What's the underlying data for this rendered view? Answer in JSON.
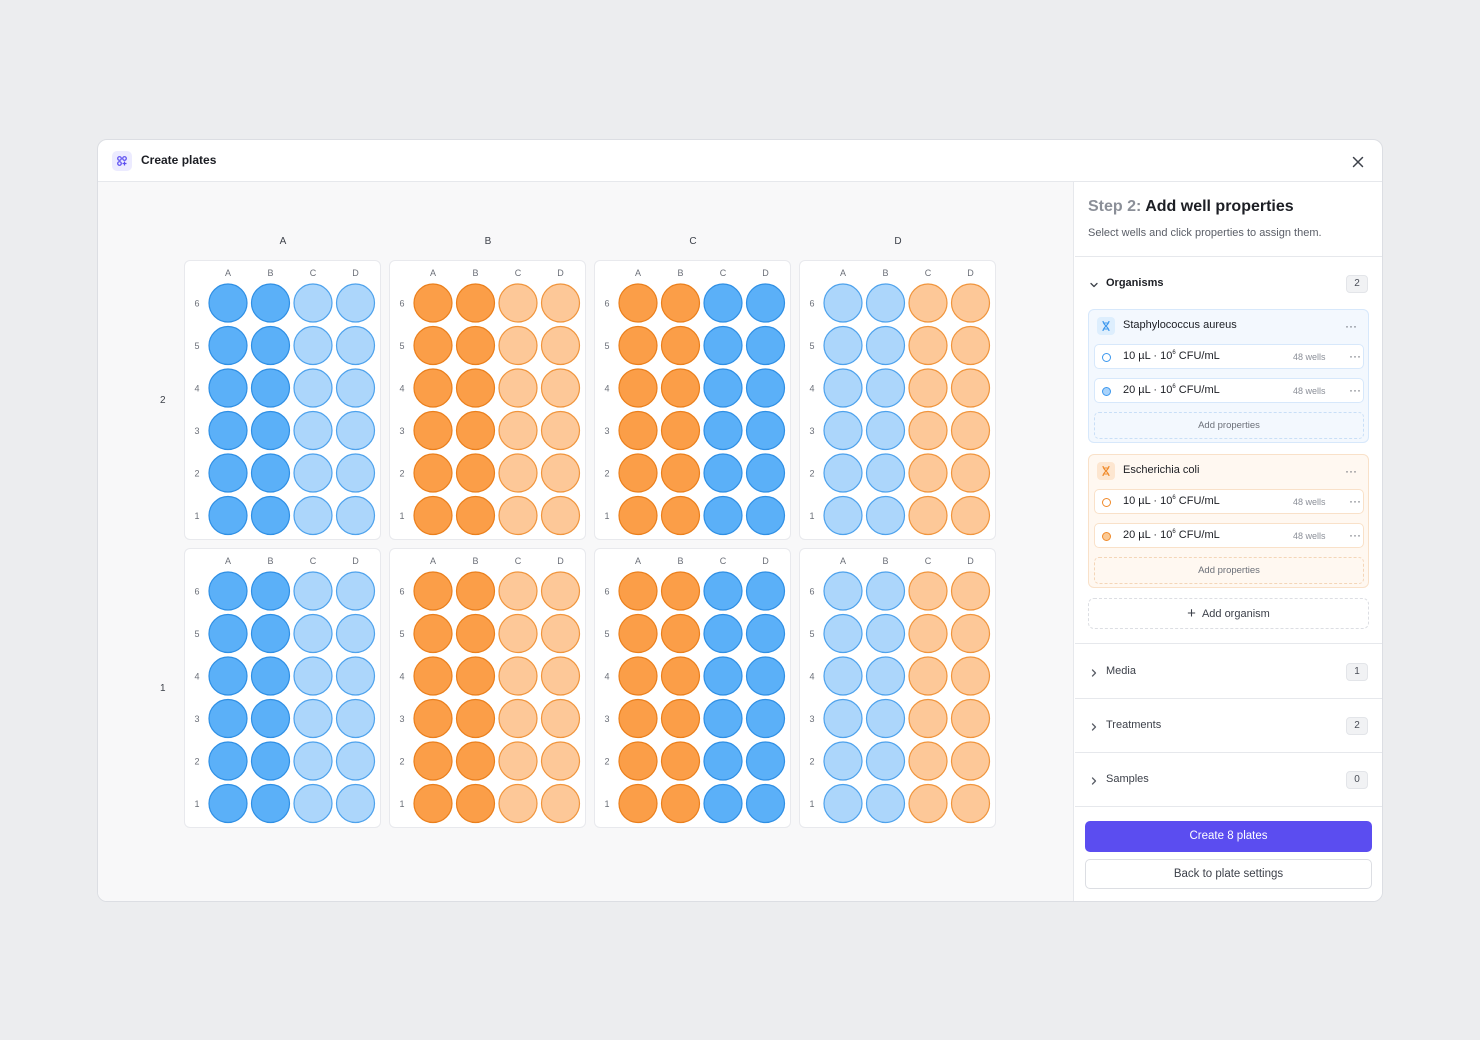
{
  "window": {
    "title": "Create plates",
    "icon": "plates-grid-icon",
    "close_icon": "close-icon"
  },
  "layout_grid": {
    "column_labels": [
      "A",
      "B",
      "C",
      "D"
    ],
    "row_labels": [
      "2",
      "1"
    ]
  },
  "plate_format": {
    "well_columns": [
      "A",
      "B",
      "C",
      "D"
    ],
    "well_rows": [
      "6",
      "5",
      "4",
      "3",
      "2",
      "1"
    ]
  },
  "plates": [
    {
      "position": "A2",
      "well_columns": [
        "blue-dark",
        "blue-dark",
        "blue-light",
        "blue-light"
      ]
    },
    {
      "position": "B2",
      "well_columns": [
        "orange-dark",
        "orange-dark",
        "orange-light",
        "orange-light"
      ]
    },
    {
      "position": "C2",
      "well_columns": [
        "orange-dark",
        "orange-dark",
        "blue-dark",
        "blue-dark"
      ]
    },
    {
      "position": "D2",
      "well_columns": [
        "blue-light",
        "blue-light",
        "orange-light",
        "orange-light"
      ]
    },
    {
      "position": "A1",
      "well_columns": [
        "blue-dark",
        "blue-dark",
        "blue-light",
        "blue-light"
      ]
    },
    {
      "position": "B1",
      "well_columns": [
        "orange-dark",
        "orange-dark",
        "orange-light",
        "orange-light"
      ]
    },
    {
      "position": "C1",
      "well_columns": [
        "orange-dark",
        "orange-dark",
        "blue-dark",
        "blue-dark"
      ]
    },
    {
      "position": "D1",
      "well_columns": [
        "blue-light",
        "blue-light",
        "orange-light",
        "orange-light"
      ]
    }
  ],
  "well_colors": {
    "blue-dark": {
      "fill": "#5bb0f8",
      "stroke": "#2f8fe4"
    },
    "blue-light": {
      "fill": "#acd6fb",
      "stroke": "#4ea2ec"
    },
    "orange-dark": {
      "fill": "#fb9e48",
      "stroke": "#ea7f1c"
    },
    "orange-light": {
      "fill": "#fdc898",
      "stroke": "#f0953d"
    }
  },
  "panel": {
    "step_prefix": "Step 2:",
    "step_title": "Add well properties",
    "subtitle": "Select wells and click properties to assign them.",
    "organisms": {
      "label": "Organisms",
      "count": "2",
      "items": [
        {
          "name": "Staphylococcus aureus",
          "color": "blue",
          "properties": [
            {
              "volume": "10 µL",
              "conc_base": "10",
              "conc_exp": "6",
              "conc_unit": "CFU/mL",
              "wells": "48 wells"
            },
            {
              "volume": "20 µL",
              "conc_base": "10",
              "conc_exp": "6",
              "conc_unit": "CFU/mL",
              "wells": "48 wells"
            }
          ],
          "add_label": "Add properties"
        },
        {
          "name": "Escherichia coli",
          "color": "orange",
          "properties": [
            {
              "volume": "10 µL",
              "conc_base": "10",
              "conc_exp": "6",
              "conc_unit": "CFU/mL",
              "wells": "48 wells"
            },
            {
              "volume": "20 µL",
              "conc_base": "10",
              "conc_exp": "6",
              "conc_unit": "CFU/mL",
              "wells": "48 wells"
            }
          ],
          "add_label": "Add properties"
        }
      ],
      "add_organism_label": "Add organism"
    },
    "media": {
      "label": "Media",
      "count": "1"
    },
    "treatments": {
      "label": "Treatments",
      "count": "2"
    },
    "samples": {
      "label": "Samples",
      "count": "0"
    },
    "dot_separator": "·",
    "more_glyph": "···"
  },
  "footer": {
    "primary_label": "Create 8 plates",
    "secondary_label": "Back to plate settings"
  },
  "colors": {
    "accent": "#5b4df0",
    "blue_accent": "#3c98ee",
    "orange_accent": "#f08a2a"
  }
}
